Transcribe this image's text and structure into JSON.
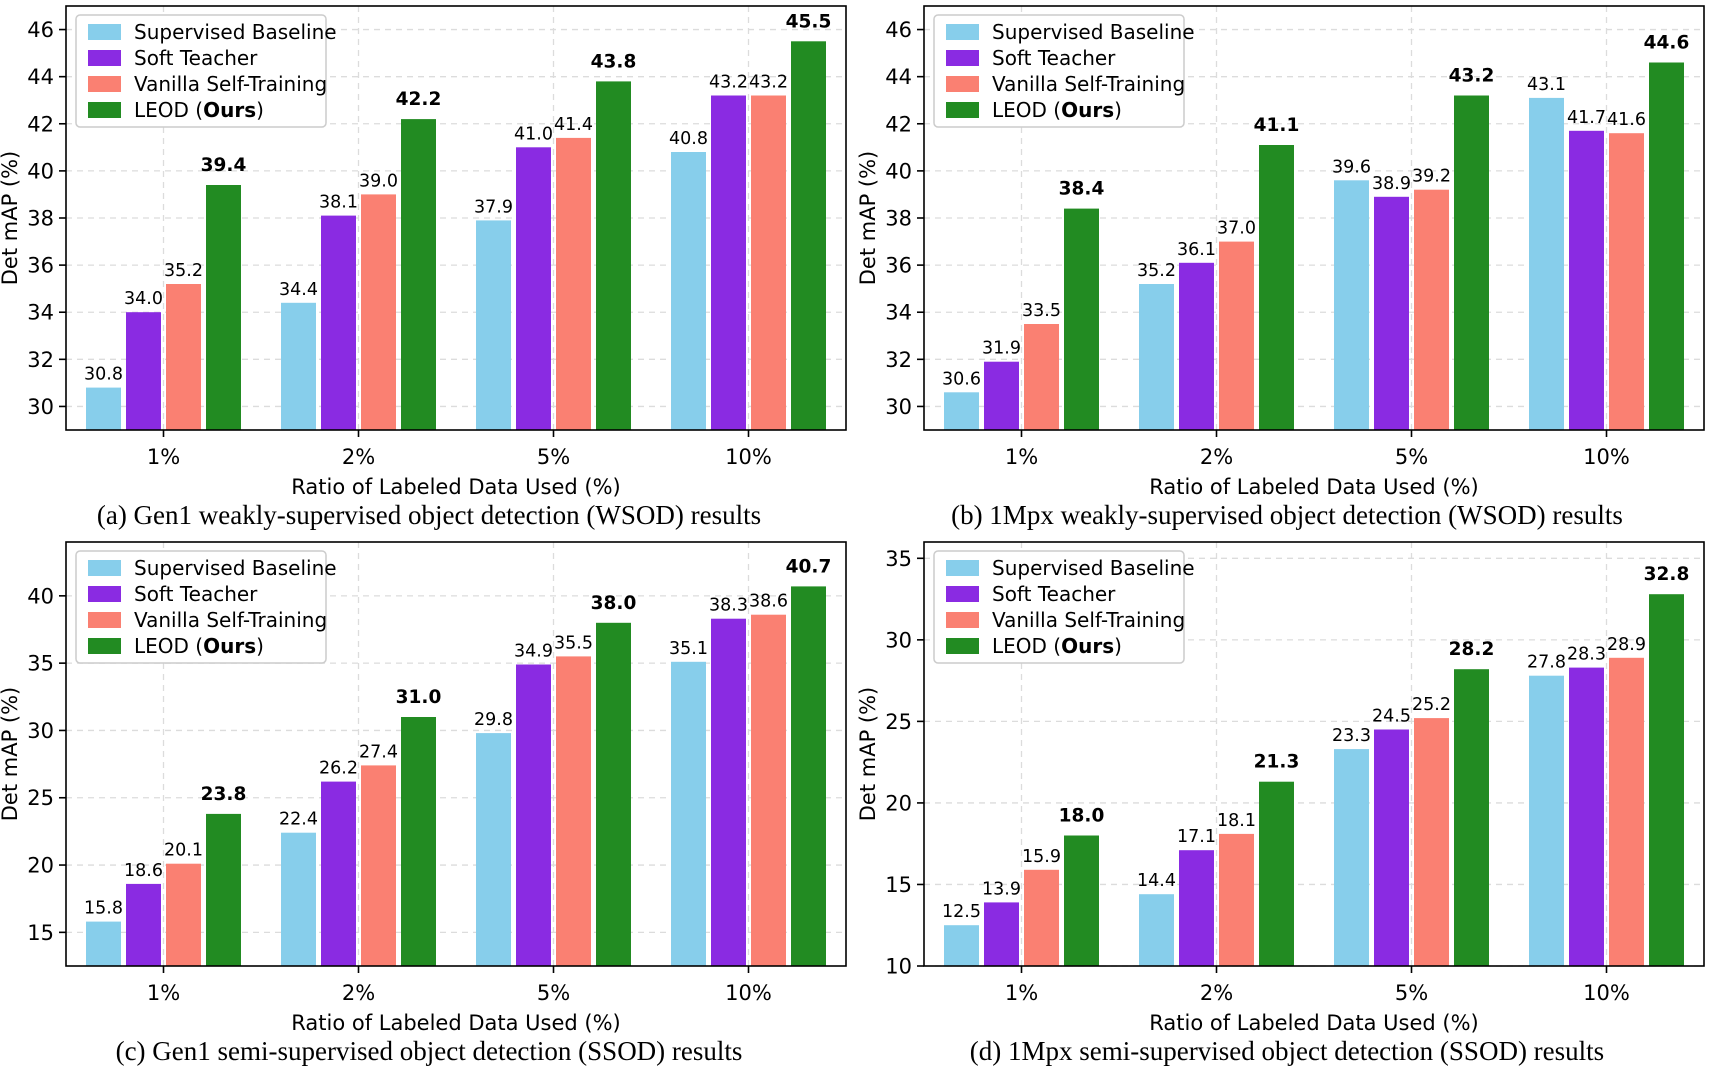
{
  "style_colors": {
    "background": "#ffffff",
    "grid": "#dcdcdc",
    "axis": "#000000",
    "legend_border": "#cccccc"
  },
  "chart_data": {
    "type": "bar",
    "shared": {
      "categories": [
        "1%",
        "2%",
        "5%",
        "10%"
      ],
      "xlabel": "Ratio of Labeled Data Used (%)",
      "ylabel": "Det mAP (%)",
      "grid": "dashed, both axes",
      "legend_position": "upper left",
      "legend": [
        {
          "label": "Supervised Baseline",
          "color": "#87CEEB",
          "bold_values": false
        },
        {
          "label": "Soft Teacher",
          "color": "#8A2BE2",
          "bold_values": false
        },
        {
          "label": "Vanilla Self-Training",
          "color": "#FA8072",
          "bold_values": false
        },
        {
          "label": "LEOD (Ours)",
          "label_pre": "LEOD (",
          "label_bold": "Ours",
          "label_post": ")",
          "color": "#228B22",
          "bold_values": true
        }
      ]
    },
    "charts": [
      {
        "id": "a",
        "caption": "(a) Gen1 weakly-supervised object detection (WSOD) results",
        "ylim": [
          29,
          47
        ],
        "yticks": [
          30,
          32,
          34,
          36,
          38,
          40,
          42,
          44,
          46
        ],
        "series": [
          {
            "name": "Supervised Baseline",
            "values": [
              30.8,
              34.4,
              37.9,
              40.8
            ]
          },
          {
            "name": "Soft Teacher",
            "values": [
              34.0,
              38.1,
              41.0,
              43.2
            ]
          },
          {
            "name": "Vanilla Self-Training",
            "values": [
              35.2,
              39.0,
              41.4,
              43.2
            ]
          },
          {
            "name": "LEOD (Ours)",
            "values": [
              39.4,
              42.2,
              43.8,
              45.5
            ]
          }
        ]
      },
      {
        "id": "b",
        "caption": "(b) 1Mpx weakly-supervised object detection (WSOD) results",
        "ylim": [
          29,
          47
        ],
        "yticks": [
          30,
          32,
          34,
          36,
          38,
          40,
          42,
          44,
          46
        ],
        "series": [
          {
            "name": "Supervised Baseline",
            "values": [
              30.6,
              35.2,
              39.6,
              43.1
            ]
          },
          {
            "name": "Soft Teacher",
            "values": [
              31.9,
              36.1,
              38.9,
              41.7
            ]
          },
          {
            "name": "Vanilla Self-Training",
            "values": [
              33.5,
              37.0,
              39.2,
              41.6
            ]
          },
          {
            "name": "LEOD (Ours)",
            "values": [
              38.4,
              41.1,
              43.2,
              44.6
            ]
          }
        ]
      },
      {
        "id": "c",
        "caption": "(c) Gen1 semi-supervised object detection (SSOD) results",
        "ylim": [
          12.5,
          44
        ],
        "yticks": [
          15,
          20,
          25,
          30,
          35,
          40
        ],
        "series": [
          {
            "name": "Supervised Baseline",
            "values": [
              15.8,
              22.4,
              29.8,
              35.1
            ]
          },
          {
            "name": "Soft Teacher",
            "values": [
              18.6,
              26.2,
              34.9,
              38.3
            ]
          },
          {
            "name": "Vanilla Self-Training",
            "values": [
              20.1,
              27.4,
              35.5,
              38.6
            ]
          },
          {
            "name": "LEOD (Ours)",
            "values": [
              23.8,
              31.0,
              38.0,
              40.7
            ]
          }
        ]
      },
      {
        "id": "d",
        "caption": "(d) 1Mpx semi-supervised object detection (SSOD) results",
        "ylim": [
          10,
          36
        ],
        "yticks": [
          10,
          15,
          20,
          25,
          30,
          35
        ],
        "series": [
          {
            "name": "Supervised Baseline",
            "values": [
              12.5,
              14.4,
              23.3,
              27.8
            ]
          },
          {
            "name": "Soft Teacher",
            "values": [
              13.9,
              17.1,
              24.5,
              28.3
            ]
          },
          {
            "name": "Vanilla Self-Training",
            "values": [
              15.9,
              18.1,
              25.2,
              28.9
            ]
          },
          {
            "name": "LEOD (Ours)",
            "values": [
              18.0,
              21.3,
              28.2,
              32.8
            ]
          }
        ]
      }
    ]
  }
}
